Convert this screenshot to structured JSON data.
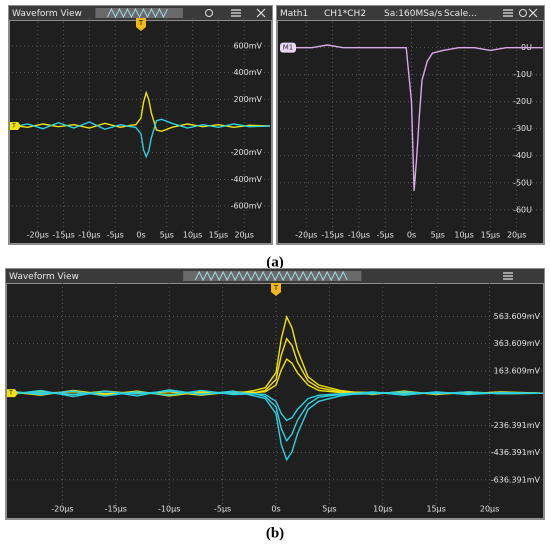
{
  "chart_data": [
    {
      "type": "line",
      "title": "Waveform View",
      "annotations": [
        "T",
        "T"
      ],
      "x": [
        -25,
        -22,
        -19,
        -16,
        -13,
        -10,
        -7,
        -4,
        -2,
        -1,
        0,
        0.5,
        1,
        1.5,
        2,
        3,
        4,
        6,
        9,
        12,
        15,
        18,
        21,
        25
      ],
      "series": [
        {
          "color": "#f2e20c",
          "values": [
            5,
            -10,
            15,
            -5,
            10,
            -15,
            20,
            -10,
            5,
            10,
            60,
            180,
            250,
            200,
            100,
            -30,
            -40,
            -10,
            15,
            -5,
            10,
            -10,
            5,
            0
          ]
        },
        {
          "color": "#2ed0e0",
          "values": [
            -10,
            15,
            -20,
            25,
            -15,
            30,
            -25,
            10,
            -5,
            -10,
            -60,
            -180,
            -230,
            -190,
            -90,
            40,
            50,
            20,
            -15,
            10,
            -10,
            15,
            -5,
            0
          ]
        }
      ],
      "xlim": [
        -25,
        25
      ],
      "ylim": [
        -750,
        780
      ],
      "xticks": [
        {
          "value": -20,
          "label": "-20µs"
        },
        {
          "value": -15,
          "label": "-15µs"
        },
        {
          "value": -10,
          "label": "-10µs"
        },
        {
          "value": -5,
          "label": "-5µs"
        },
        {
          "value": 0,
          "label": "0s"
        },
        {
          "value": 5,
          "label": "5µs"
        },
        {
          "value": 10,
          "label": "10µs"
        },
        {
          "value": 15,
          "label": "15µs"
        },
        {
          "value": 20,
          "label": "20µs"
        }
      ],
      "yticks": [
        {
          "value": 600,
          "label": "600mV"
        },
        {
          "value": 400,
          "label": "400mV"
        },
        {
          "value": 200,
          "label": "200mV"
        },
        {
          "value": -200,
          "label": "-200mV"
        },
        {
          "value": -400,
          "label": "-400mV"
        },
        {
          "value": -600,
          "label": "-600mV"
        }
      ],
      "grid": true
    },
    {
      "type": "line",
      "title": "Math1",
      "header_items": [
        "CH1*CH2",
        "Sa:160MSa/s",
        "Scale..."
      ],
      "annotations": [
        "M1"
      ],
      "x": [
        -25,
        -22,
        -19,
        -16,
        -13,
        -10,
        -7,
        -4,
        -2,
        -1,
        0,
        0.5,
        1,
        1.5,
        2,
        3,
        4,
        6,
        9,
        12,
        15,
        18,
        21,
        25
      ],
      "series": [
        {
          "color": "#d8a8e8",
          "values": [
            0,
            0,
            0,
            1,
            0,
            0,
            0,
            0,
            0,
            0,
            -20,
            -53,
            -40,
            -25,
            -12,
            -5,
            -2,
            -1,
            0,
            0,
            -1,
            0,
            0,
            0
          ]
        }
      ],
      "xlim": [
        -25,
        25
      ],
      "ylim": [
        -66,
        9.5
      ],
      "xticks": [
        {
          "value": -20,
          "label": "-20µs"
        },
        {
          "value": -15,
          "label": "-15µs"
        },
        {
          "value": -10,
          "label": "-10µs"
        },
        {
          "value": -5,
          "label": "-5µs"
        },
        {
          "value": 0,
          "label": "0s"
        },
        {
          "value": 5,
          "label": "5µs"
        },
        {
          "value": 10,
          "label": "10µs"
        },
        {
          "value": 15,
          "label": "15µs"
        },
        {
          "value": 20,
          "label": "20µs"
        }
      ],
      "yticks": [
        {
          "value": 0,
          "label": "0U"
        },
        {
          "value": -10,
          "label": "-10U"
        },
        {
          "value": -20,
          "label": "-20U"
        },
        {
          "value": -30,
          "label": "-30U"
        },
        {
          "value": -40,
          "label": "-40U"
        },
        {
          "value": -50,
          "label": "-50U"
        },
        {
          "value": -60,
          "label": "-60U"
        }
      ],
      "grid": true
    },
    {
      "type": "line",
      "title": "Waveform View",
      "annotations": [
        "T",
        "T"
      ],
      "x": [
        -25,
        -22,
        -19,
        -16,
        -13,
        -10,
        -7,
        -4,
        -2,
        -1,
        0,
        0.5,
        1,
        1.5,
        2,
        3,
        4,
        6,
        9,
        12,
        15,
        18,
        21,
        25
      ],
      "series": [
        {
          "color": "#f2e20c",
          "values": [
            10,
            -15,
            20,
            -10,
            15,
            -20,
            10,
            -5,
            20,
            40,
            150,
            400,
            560,
            480,
            320,
            120,
            60,
            20,
            -10,
            15,
            -10,
            10,
            -5,
            0
          ]
        },
        {
          "color": "#f2e20c",
          "values": [
            -5,
            10,
            -10,
            15,
            -5,
            10,
            -15,
            10,
            5,
            20,
            100,
            280,
            400,
            350,
            230,
            90,
            40,
            10,
            5,
            -10,
            5,
            -5,
            10,
            0
          ]
        },
        {
          "color": "#f2e20c",
          "values": [
            5,
            0,
            10,
            -5,
            5,
            -10,
            5,
            0,
            5,
            10,
            60,
            170,
            250,
            220,
            150,
            60,
            20,
            5,
            0,
            5,
            -5,
            0,
            5,
            0
          ]
        },
        {
          "color": "#2ed0e0",
          "values": [
            -10,
            20,
            -25,
            15,
            -20,
            25,
            -10,
            15,
            -20,
            -40,
            -150,
            -380,
            -490,
            -430,
            -300,
            -120,
            -60,
            -20,
            10,
            -15,
            10,
            -10,
            5,
            0
          ]
        },
        {
          "color": "#2ed0e0",
          "values": [
            15,
            -10,
            15,
            -20,
            10,
            -15,
            20,
            -10,
            -5,
            -25,
            -100,
            -260,
            -350,
            -300,
            -200,
            -80,
            -30,
            -10,
            -5,
            10,
            -5,
            10,
            -5,
            0
          ]
        },
        {
          "color": "#2ed0e0",
          "values": [
            0,
            5,
            -10,
            10,
            -5,
            15,
            -5,
            5,
            -5,
            -10,
            -60,
            -150,
            -200,
            -180,
            -120,
            -40,
            -15,
            -5,
            5,
            -5,
            5,
            -5,
            0,
            0
          ]
        }
      ],
      "xlim": [
        -25,
        25
      ],
      "ylim": [
        -785,
        780
      ],
      "xticks": [
        {
          "value": -20,
          "label": "-20µs"
        },
        {
          "value": -15,
          "label": "-15µs"
        },
        {
          "value": -10,
          "label": "-10µs"
        },
        {
          "value": -5,
          "label": "-5µs"
        },
        {
          "value": 0,
          "label": "0s"
        },
        {
          "value": 5,
          "label": "5µs"
        },
        {
          "value": 10,
          "label": "10µs"
        },
        {
          "value": 15,
          "label": "15µs"
        },
        {
          "value": 20,
          "label": "20µs"
        }
      ],
      "yticks": [
        {
          "value": 563.609,
          "label": "563.609mV"
        },
        {
          "value": 363.609,
          "label": "363.609mV"
        },
        {
          "value": 163.609,
          "label": "163.609mV"
        },
        {
          "value": -236.391,
          "label": "-236.391mV"
        },
        {
          "value": -436.391,
          "label": "-436.391mV"
        },
        {
          "value": -636.391,
          "label": "-636.391mV"
        }
      ],
      "grid": true
    }
  ],
  "panel_labels": [
    "(a)",
    "(b)"
  ]
}
